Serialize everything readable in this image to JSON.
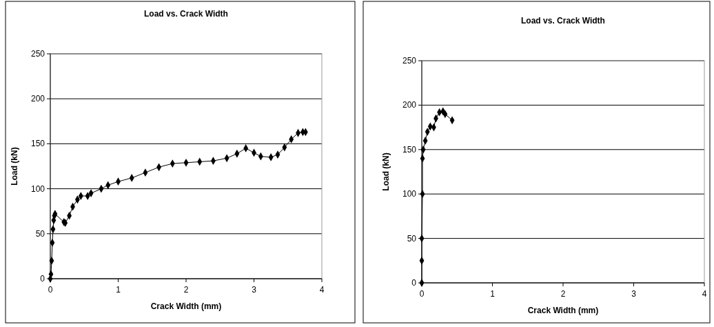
{
  "chart_data": [
    {
      "type": "line",
      "title": "Load vs. Crack Width",
      "xlabel": "Crack Width (mm)",
      "ylabel": "Load (kN)",
      "xlim": [
        0,
        4
      ],
      "xticks": [
        0,
        1,
        2,
        3,
        4
      ],
      "ylim": [
        0,
        250
      ],
      "yticks": [
        0,
        50,
        100,
        150,
        200,
        250
      ],
      "grid": "y",
      "marker": "diamond",
      "line_style": "solid",
      "series": [
        {
          "color": "#000000",
          "x": [
            0,
            0.01,
            0.02,
            0.03,
            0.04,
            0.05,
            0.06,
            0.07,
            0.2,
            0.22,
            0.28,
            0.33,
            0.4,
            0.45,
            0.55,
            0.6,
            0.75,
            0.85,
            1.0,
            1.2,
            1.4,
            1.6,
            1.8,
            2.0,
            2.2,
            2.4,
            2.6,
            2.75,
            2.88,
            3.0,
            3.1,
            3.25,
            3.35,
            3.45,
            3.55,
            3.65,
            3.72,
            3.76
          ],
          "values": [
            0,
            5,
            20,
            40,
            55,
            65,
            70,
            72,
            63,
            62,
            70,
            80,
            88,
            92,
            92,
            95,
            100,
            104,
            108,
            112,
            118,
            124,
            128,
            129,
            130,
            131,
            134,
            139,
            145,
            140,
            136,
            135,
            138,
            146,
            155,
            162,
            163,
            163
          ]
        }
      ]
    },
    {
      "type": "line",
      "title": "Load vs. Crack Width",
      "xlabel": "Crack Width (mm)",
      "ylabel": "Load (kN)",
      "xlim": [
        0,
        4
      ],
      "xticks": [
        0,
        1,
        2,
        3,
        4
      ],
      "ylim": [
        0,
        250
      ],
      "yticks": [
        0,
        50,
        100,
        150,
        200,
        250
      ],
      "grid": "y",
      "marker": "diamond",
      "line_style": "solid",
      "series": [
        {
          "color": "#000000",
          "x": [
            0,
            0,
            0,
            0.01,
            0.01,
            0.02,
            0.05,
            0.08,
            0.12,
            0.17,
            0.2,
            0.25,
            0.3,
            0.33,
            0.43
          ],
          "values": [
            0,
            25,
            50,
            100,
            140,
            150,
            160,
            170,
            176,
            175,
            185,
            192,
            193,
            190,
            183
          ]
        }
      ]
    }
  ]
}
